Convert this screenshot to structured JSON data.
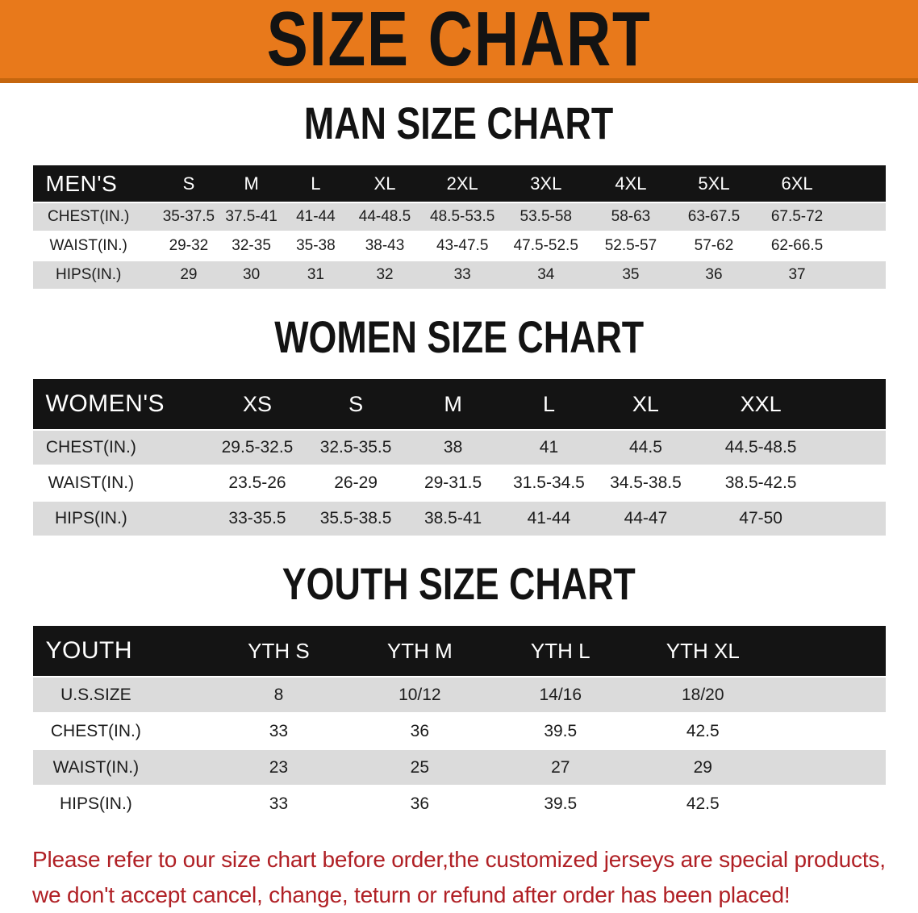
{
  "banner": {
    "title": "SIZE CHART"
  },
  "colors": {
    "banner-bg": "#E8791B",
    "banner-edge": "#C5660E",
    "header-bar-bg": "#141414",
    "header-bar-text": "#FFFFFF",
    "stripe-gray": "#DBDBDB",
    "row-white": "#FFFFFF",
    "text-dark": "#1C1C1C",
    "disclaimer-red": "#B02025"
  },
  "tables": [
    {
      "heading": "MAN SIZE CHART",
      "corner_label": "MEN'S",
      "columns": [
        "S",
        "M",
        "L",
        "XL",
        "2XL",
        "3XL",
        "4XL",
        "5XL",
        "6XL"
      ],
      "col_widths_pct": [
        14.7,
        7.2,
        7.5,
        7.6,
        8.6,
        9.6,
        10.0,
        9.9,
        9.6,
        9.9,
        5.4
      ],
      "rows": [
        {
          "label": "CHEST(IN.)",
          "values": [
            "35-37.5",
            "37.5-41",
            "41-44",
            "44-48.5",
            "48.5-53.5",
            "53.5-58",
            "58-63",
            "63-67.5",
            "67.5-72"
          ]
        },
        {
          "label": "WAIST(IN.)",
          "values": [
            "29-32",
            "32-35",
            "35-38",
            "38-43",
            "43-47.5",
            "47.5-52.5",
            "52.5-57",
            "57-62",
            "62-66.5"
          ]
        },
        {
          "label": "HIPS(IN.)",
          "values": [
            "29",
            "30",
            "31",
            "32",
            "33",
            "34",
            "35",
            "36",
            "37"
          ]
        }
      ]
    },
    {
      "heading": "WOMEN SIZE CHART",
      "corner_label": "WOMEN'S",
      "columns": [
        "XS",
        "S",
        "M",
        "L",
        "XL",
        "XXL"
      ],
      "col_widths_pct": [
        20.6,
        11.5,
        11.6,
        11.2,
        11.3,
        11.4,
        15.6,
        6.8
      ],
      "rows": [
        {
          "label": "CHEST(IN.)",
          "values": [
            "29.5-32.5",
            "32.5-35.5",
            "38",
            "41",
            "44.5",
            "44.5-48.5"
          ]
        },
        {
          "label": "WAIST(IN.)",
          "values": [
            "23.5-26",
            "26-29",
            "29-31.5",
            "31.5-34.5",
            "34.5-38.5",
            "38.5-42.5"
          ]
        },
        {
          "label": "HIPS(IN.)",
          "values": [
            "33-35.5",
            "35.5-38.5",
            "38.5-41",
            "41-44",
            "44-47",
            "47-50"
          ]
        }
      ]
    },
    {
      "heading": "YOUTH SIZE CHART",
      "corner_label": "YOUTH",
      "columns": [
        "YTH S",
        "YTH M",
        "YTH L",
        "YTH XL"
      ],
      "col_widths_pct": [
        20.6,
        16.5,
        16.6,
        16.4,
        17.0,
        12.9
      ],
      "rows": [
        {
          "label": "U.S.SIZE",
          "values": [
            "8",
            "10/12",
            "14/16",
            "18/20"
          ]
        },
        {
          "label": "CHEST(IN.)",
          "values": [
            "33",
            "36",
            "39.5",
            "42.5"
          ]
        },
        {
          "label": "WAIST(IN.)",
          "values": [
            "23",
            "25",
            "27",
            "29"
          ]
        },
        {
          "label": "HIPS(IN.)",
          "values": [
            "33",
            "36",
            "39.5",
            "42.5"
          ]
        }
      ]
    }
  ],
  "disclaimer": {
    "line1": "Please refer to our size chart before order,the customized jerseys are special products,",
    "line2": "we don't accept cancel, change, teturn or refund after order has been placed!"
  }
}
